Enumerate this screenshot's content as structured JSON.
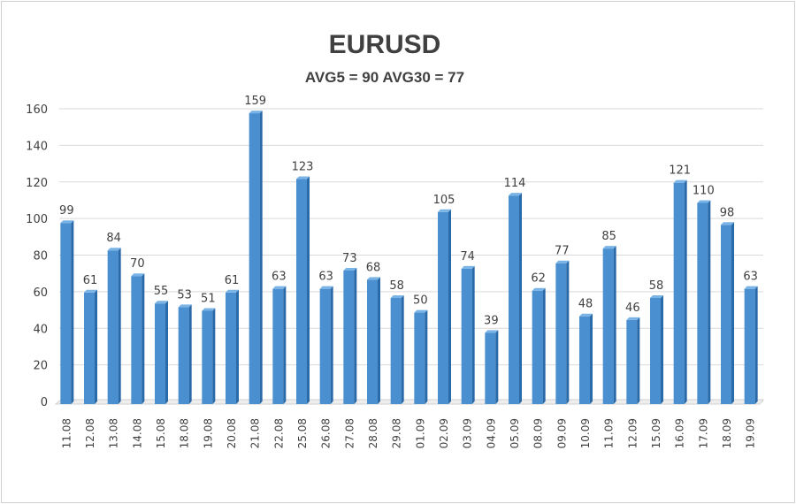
{
  "chart_data": {
    "type": "bar",
    "title": "EURUSD",
    "subtitle": "AVG5 = 90 AVG30 = 77",
    "xlabel": "",
    "ylabel": "",
    "ylim": [
      0,
      160
    ],
    "yticks": [
      0,
      20,
      40,
      60,
      80,
      100,
      120,
      140,
      160
    ],
    "grid": true,
    "legend": "none",
    "categories": [
      "11.08",
      "12.08",
      "13.08",
      "14.08",
      "15.08",
      "18.08",
      "19.08",
      "20.08",
      "21.08",
      "22.08",
      "25.08",
      "26.08",
      "27.08",
      "28.08",
      "29.08",
      "01.09",
      "02.09",
      "03.09",
      "04.09",
      "05.09",
      "08.09",
      "09.09",
      "10.09",
      "11.09",
      "12.09",
      "15.09",
      "16.09",
      "17.09",
      "18.09",
      "19.09"
    ],
    "values": [
      99,
      61,
      84,
      70,
      55,
      53,
      51,
      61,
      159,
      63,
      123,
      63,
      73,
      68,
      58,
      50,
      105,
      74,
      39,
      114,
      62,
      77,
      48,
      85,
      46,
      58,
      121,
      110,
      98,
      63
    ],
    "colors": {
      "bar": "#4a90d0",
      "bar_side": "#2a6aa8",
      "grid": "#d9d9d9"
    }
  }
}
